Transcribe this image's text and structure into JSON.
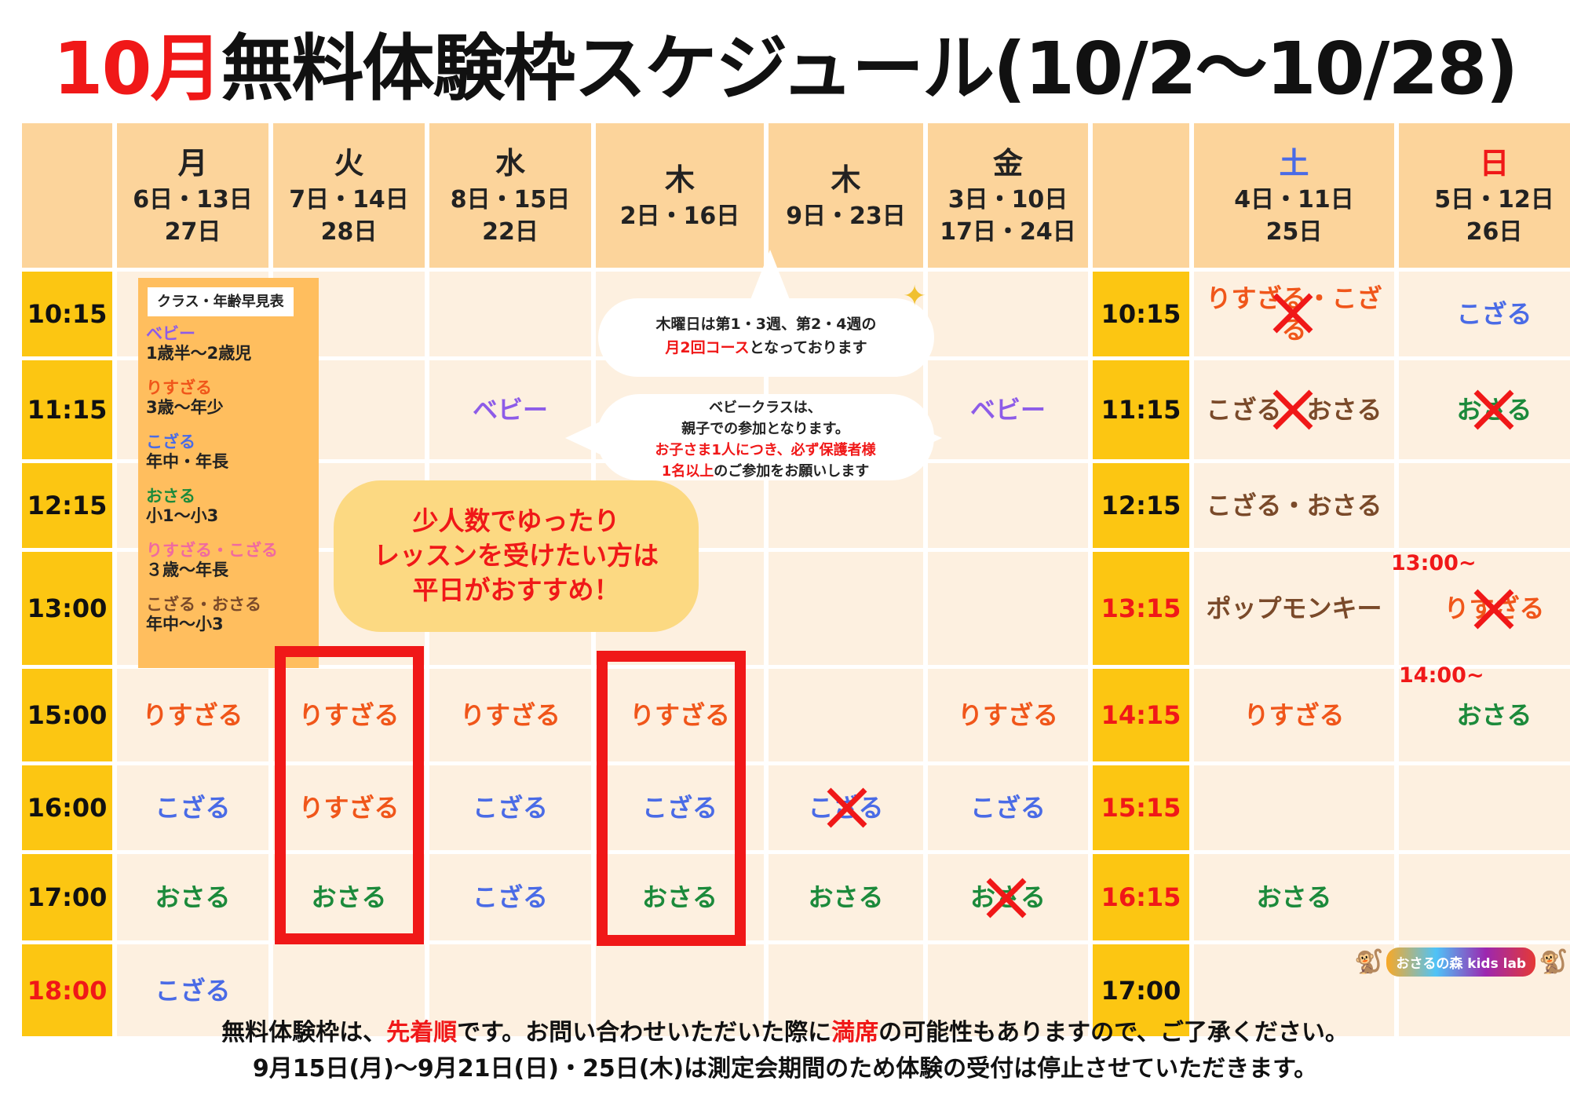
{
  "title": {
    "month": "10月",
    "rest": "無料体験枠スケジュール(10/2〜10/28)"
  },
  "headers": [
    {
      "day": "",
      "dates": ""
    },
    {
      "day": "月",
      "dates1": "6日・13日",
      "dates2": "27日"
    },
    {
      "day": "火",
      "dates1": "7日・14日",
      "dates2": "28日"
    },
    {
      "day": "水",
      "dates1": "8日・15日",
      "dates2": "22日"
    },
    {
      "day": "木",
      "dates1": "2日・16日",
      "dates2": ""
    },
    {
      "day": "木",
      "dates1": "9日・23日",
      "dates2": ""
    },
    {
      "day": "金",
      "dates1": "3日・10日",
      "dates2": "17日・24日"
    },
    {
      "day": "",
      "dates": ""
    },
    {
      "day": "土",
      "dates1": "4日・11日",
      "dates2": "25日"
    },
    {
      "day": "日",
      "dates1": "5日・12日",
      "dates2": "26日"
    }
  ],
  "colors": {
    "sat": "#4a6be6",
    "sun": "#f01818",
    "risuzaru": "#f0561a",
    "kozaru": "#4a6be6",
    "osaru": "#1c8a3b",
    "baby": "#8d5ce8",
    "brown": "#7a4a2a"
  },
  "weekday_times": [
    "10:15",
    "11:15",
    "12:15",
    "13:00",
    "15:00",
    "16:00",
    "17:00",
    "18:00"
  ],
  "weekend_times": [
    "10:15",
    "11:15",
    "12:15",
    "13:15",
    "14:15",
    "15:15",
    "16:15",
    "17:00"
  ],
  "cells": {
    "mon_1500": "りすざる",
    "mon_1600": "こざる",
    "mon_1700": "おさる",
    "mon_1800": "こざる",
    "tue_1500": "りすざる",
    "tue_1600": "りすざる",
    "tue_1700": "おさる",
    "wed_1115": "ベビー",
    "wed_1500": "りすざる",
    "wed_1600": "こざる",
    "wed_1700": "こざる",
    "thu1_1500": "りすざる",
    "thu1_1600": "こざる",
    "thu1_1700": "おさる",
    "thu2_1600": "こざる",
    "thu2_1700": "おさる",
    "fri_1115": "ベビー",
    "fri_1500": "りすざる",
    "fri_1600": "こざる",
    "fri_1700": "おさる",
    "sat_1015": "りすざる・こざる",
    "sat_1115": "こざる・おさる",
    "sat_1215": "こざる・おさる",
    "sat_1315": "ポップモンキー",
    "sat_1415": "りすざる",
    "sat_1615": "おさる",
    "sun_1015": "こざる",
    "sun_1115": "おさる",
    "sun_1315_time": "13:00~",
    "sun_1315": "りすざる",
    "sun_1415_time": "14:00~",
    "sun_1415": "おさる"
  },
  "class_guide": {
    "label": "クラス・年齢早見表",
    "items": [
      {
        "name": "ベビー",
        "age": "1歳半〜2歳児",
        "color": "#8d5ce8"
      },
      {
        "name": "りすざる",
        "age": "3歳〜年少",
        "color": "#f0561a"
      },
      {
        "name": "こざる",
        "age": "年中・年長",
        "color": "#4a6be6"
      },
      {
        "name": "おさる",
        "age": "小1〜小3",
        "color": "#1c8a3b"
      },
      {
        "name": "りすざる・こざる",
        "age": "３歳〜年長",
        "color": "#f06aa0"
      },
      {
        "name": "こざる・おさる",
        "age": "年中〜小3",
        "color": "#7a4a2a"
      }
    ]
  },
  "bubble1": {
    "line1": "木曜日は第1・3週、第2・4週の",
    "red": "月2回コース",
    "line2": "となっております"
  },
  "bubble2": {
    "l1": "ベビークラスは、",
    "l2": "親子での参加となります。",
    "l3": "お子さま1人につき、必ず保護者様",
    "l4a": "1名以上",
    "l4b": "のご参加をお願いします"
  },
  "promo": {
    "l1": "少人数でゆったり",
    "l2": "レッスンを受けたい方は",
    "l3": "平日がおすすめ！"
  },
  "logo": {
    "text": "おさるの森 kids lab",
    "mark": "🐒"
  },
  "footer": {
    "p1": "無料体験枠は、",
    "r1": "先着順",
    "p2": "です。お問い合わせいただいた際に",
    "r2": "満席",
    "p3": "の可能性もありますので、ご了承ください。",
    "line2": "9月15日(月)〜9月21日(日)・25日(木)は測定会期間のため体験の受付は停止させていただきます。"
  }
}
